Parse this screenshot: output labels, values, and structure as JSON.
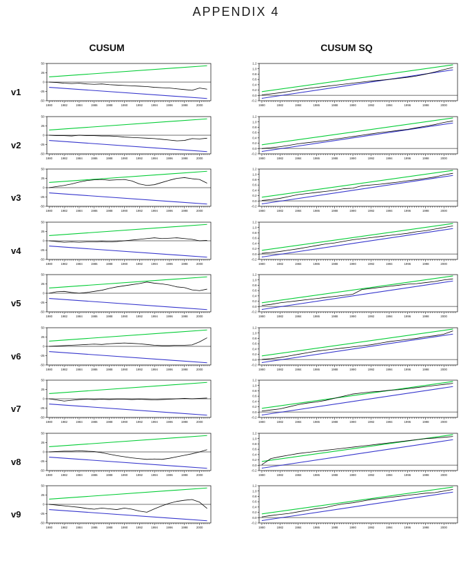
{
  "page": {
    "title": "APPENDIX 4"
  },
  "columns": {
    "left": "CUSUM",
    "right": "CUSUM SQ"
  },
  "chart_data": {
    "type": "line",
    "x_years_start": 1980,
    "x_years_end": 2001,
    "xlim": [
      1979.7,
      2001.5
    ],
    "xticks": [
      1980,
      1982,
      1984,
      1986,
      1988,
      1990,
      1992,
      1994,
      1996,
      1998,
      2000
    ],
    "xtick_labels": [
      "1980",
      "1982",
      "1984",
      "1986",
      "1988",
      "1990",
      "1992",
      "1994",
      "1996",
      "1998",
      "2000"
    ],
    "cusum": {
      "ylim": [
        -50,
        50
      ],
      "yticks": [
        50,
        25,
        0,
        -25,
        -50
      ],
      "ytick_labels": [
        "50",
        "25",
        "0",
        "-25",
        "-50"
      ],
      "upper_bound": {
        "x": [
          1980,
          2001
        ],
        "y": [
          14,
          44
        ]
      },
      "lower_bound": {
        "x": [
          1980,
          2001
        ],
        "y": [
          -14,
          -44
        ]
      },
      "zero_line": 0
    },
    "cusumsq": {
      "ylim": [
        -0.2,
        1.2
      ],
      "yticks": [
        1.2,
        1.0,
        0.8,
        0.6,
        0.4,
        0.2,
        0.0,
        -0.2
      ],
      "ytick_labels": [
        "1.2",
        "1.0",
        "0.8",
        "0.6",
        "0.4",
        "0.2",
        "0.0",
        "-0.2"
      ],
      "upper_bound": {
        "x": [
          1980,
          2001
        ],
        "y": [
          0.14,
          1.15
        ]
      },
      "lower_bound": {
        "x": [
          1980,
          2001
        ],
        "y": [
          -0.11,
          0.96
        ]
      },
      "zero_line": 0
    },
    "colors": {
      "series": "#000000",
      "upper_bound": "#00cc33",
      "lower_bound": "#3333cc",
      "zero_line": "#8c8c8c",
      "frame": "#000000"
    },
    "rows": [
      {
        "label": "v1",
        "cusum": [
          0,
          -1,
          -3,
          -4,
          -3,
          -5,
          -6,
          -5,
          -7,
          -8,
          -9,
          -10,
          -11,
          -12,
          -14,
          -15,
          -16,
          -18,
          -20,
          -22,
          -16,
          -19
        ],
        "cusumsq": [
          0.02,
          0.06,
          0.1,
          0.15,
          0.21,
          0.26,
          0.3,
          0.34,
          0.38,
          0.42,
          0.46,
          0.5,
          0.54,
          0.57,
          0.6,
          0.64,
          0.68,
          0.73,
          0.8,
          0.88,
          0.97,
          1.05
        ]
      },
      {
        "label": "v2",
        "cusum": [
          0,
          -1,
          -1,
          -2,
          0,
          -1,
          -1,
          -2,
          -2,
          -3,
          -5,
          -6,
          -7,
          -8,
          -9,
          -11,
          -13,
          -15,
          -14,
          -9,
          -10,
          -8
        ],
        "cusumsq": [
          0.0,
          0.03,
          0.07,
          0.12,
          0.18,
          0.22,
          0.26,
          0.3,
          0.35,
          0.4,
          0.45,
          0.5,
          0.55,
          0.6,
          0.64,
          0.68,
          0.72,
          0.78,
          0.84,
          0.9,
          0.98,
          1.04
        ]
      },
      {
        "label": "v3",
        "cusum": [
          0,
          3,
          6,
          10,
          15,
          19,
          21,
          22,
          20,
          21,
          22,
          18,
          10,
          6,
          8,
          14,
          20,
          25,
          27,
          24,
          22,
          12
        ],
        "cusumsq": [
          0.02,
          0.05,
          0.1,
          0.17,
          0.24,
          0.28,
          0.32,
          0.36,
          0.4,
          0.46,
          0.48,
          0.57,
          0.6,
          0.63,
          0.67,
          0.71,
          0.76,
          0.8,
          0.85,
          0.9,
          0.98,
          1.04
        ]
      },
      {
        "label": "v4",
        "cusum": [
          0,
          -2,
          -4,
          -3,
          -4,
          -3,
          -3,
          -2,
          -3,
          -2,
          0,
          2,
          4,
          6,
          8,
          6,
          7,
          8,
          6,
          4,
          0,
          1
        ],
        "cusumsq": [
          0.03,
          0.06,
          0.1,
          0.15,
          0.2,
          0.26,
          0.32,
          0.38,
          0.42,
          0.48,
          0.54,
          0.58,
          0.62,
          0.66,
          0.7,
          0.74,
          0.78,
          0.84,
          0.88,
          0.94,
          1.0,
          1.06
        ]
      },
      {
        "label": "v5",
        "cusum": [
          0,
          4,
          5,
          2,
          0,
          2,
          5,
          8,
          13,
          17,
          20,
          23,
          26,
          30,
          27,
          25,
          22,
          17,
          15,
          9,
          7,
          11
        ],
        "cusumsq": [
          0.04,
          0.08,
          0.14,
          0.18,
          0.22,
          0.26,
          0.3,
          0.34,
          0.38,
          0.42,
          0.46,
          0.64,
          0.68,
          0.72,
          0.76,
          0.8,
          0.84,
          0.86,
          0.9,
          0.94,
          1.0,
          1.04
        ]
      },
      {
        "label": "v6",
        "cusum": [
          0,
          1,
          2,
          3,
          4,
          5,
          6,
          5,
          7,
          8,
          9,
          8,
          7,
          5,
          3,
          2,
          2,
          3,
          3,
          4,
          12,
          23
        ],
        "cusumsq": [
          0.01,
          0.04,
          0.08,
          0.14,
          0.2,
          0.26,
          0.32,
          0.36,
          0.4,
          0.44,
          0.48,
          0.52,
          0.56,
          0.62,
          0.68,
          0.72,
          0.76,
          0.8,
          0.86,
          0.9,
          0.96,
          1.08
        ]
      },
      {
        "label": "v7",
        "cusum": [
          0,
          -3,
          -6,
          -4,
          -2,
          -1,
          -2,
          -1,
          -2,
          -1,
          -1,
          -2,
          -1,
          -2,
          -3,
          -2,
          -1,
          0,
          1,
          0,
          1,
          2
        ],
        "cusumsq": [
          0.04,
          0.08,
          0.12,
          0.2,
          0.28,
          0.34,
          0.38,
          0.44,
          0.52,
          0.6,
          0.68,
          0.72,
          0.76,
          0.78,
          0.82,
          0.84,
          0.88,
          0.92,
          0.96,
          1.0,
          1.04,
          1.08
        ]
      },
      {
        "label": "v8",
        "cusum": [
          0,
          1,
          2,
          2,
          3,
          2,
          1,
          -2,
          -6,
          -10,
          -13,
          -16,
          -18,
          -20,
          -19,
          -20,
          -17,
          -13,
          -9,
          -5,
          0,
          6
        ],
        "cusumsq": [
          0.02,
          0.25,
          0.32,
          0.38,
          0.44,
          0.48,
          0.52,
          0.56,
          0.6,
          0.64,
          0.68,
          0.72,
          0.76,
          0.8,
          0.84,
          0.88,
          0.92,
          0.96,
          1.0,
          1.02,
          1.05,
          1.08
        ]
      },
      {
        "label": "v9",
        "cusum": [
          0,
          -2,
          -4,
          -6,
          -8,
          -11,
          -13,
          -10,
          -12,
          -14,
          -10,
          -13,
          -18,
          -21,
          -12,
          -4,
          3,
          8,
          11,
          13,
          6,
          -11
        ],
        "cusumsq": [
          0.03,
          0.08,
          0.12,
          0.16,
          0.22,
          0.28,
          0.34,
          0.38,
          0.46,
          0.52,
          0.56,
          0.62,
          0.68,
          0.72,
          0.76,
          0.8,
          0.84,
          0.88,
          0.92,
          0.94,
          1.0,
          1.06
        ]
      }
    ]
  }
}
